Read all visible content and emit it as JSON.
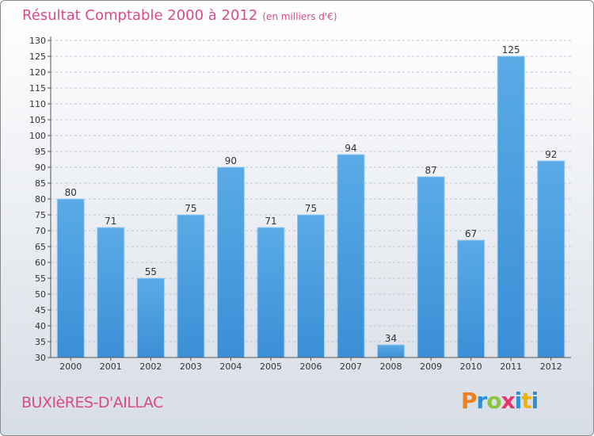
{
  "chart_data": {
    "type": "bar",
    "title": "Résultat Comptable 2000 à 2012",
    "subtitle": "(en milliers d'€)",
    "categories": [
      "2000",
      "2001",
      "2002",
      "2003",
      "2004",
      "2005",
      "2006",
      "2007",
      "2008",
      "2009",
      "2010",
      "2011",
      "2012"
    ],
    "values": [
      80,
      71,
      55,
      75,
      90,
      71,
      75,
      94,
      34,
      87,
      67,
      125,
      92
    ],
    "xlabel": "",
    "ylabel": "",
    "ylim": [
      30,
      130
    ],
    "ytick_step": 5,
    "grid": "horizontal",
    "legend": "none",
    "bar_color": "#3a8fd6",
    "bar_color_light": "#5aaae6"
  },
  "commune": "BUXIèRES-D'AILLAC",
  "logo": {
    "letters": [
      "P",
      "r",
      "o",
      "x",
      "i",
      "t",
      "i"
    ]
  }
}
